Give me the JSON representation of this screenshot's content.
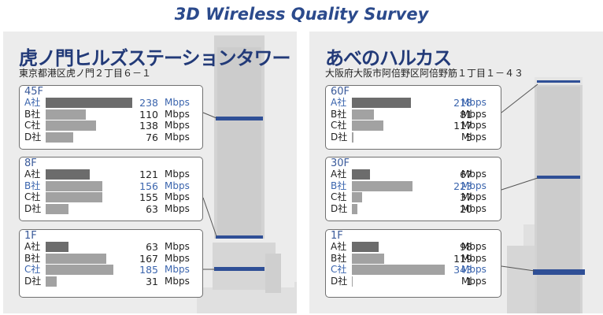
{
  "title": "3D Wireless Quality Survey",
  "colors": {
    "title": "#2b4a8c",
    "highlight": "#3a64ad",
    "floor_band": "#2f4f96",
    "bars": [
      "#6c6c6c",
      "#a2a2a2",
      "#a2a2a2",
      "#a2a2a2"
    ]
  },
  "chart_data": [
    {
      "type": "bar",
      "panel_name": "虎ノ門ヒルズステーションタワー",
      "address": "東京都港区虎ノ門２丁目６－１",
      "unit": "Mbps",
      "carriers": [
        "A社",
        "B社",
        "C社",
        "D社"
      ],
      "floors": [
        {
          "floor": "45F",
          "values": [
            238,
            110,
            138,
            76
          ],
          "best": "A社"
        },
        {
          "floor": "8F",
          "values": [
            121,
            156,
            155,
            63
          ],
          "best": "B社"
        },
        {
          "floor": "1F",
          "values": [
            63,
            167,
            185,
            31
          ],
          "best": "C社"
        }
      ]
    },
    {
      "type": "bar",
      "panel_name": "あべのハルカス",
      "address": "大阪府大阪市阿倍野区阿倍野筋１丁目１－４３",
      "unit": "Mbps",
      "carriers": [
        "A社",
        "B社",
        "C社",
        "D社"
      ],
      "floors": [
        {
          "floor": "60F",
          "values": [
            218,
            81,
            117,
            5
          ],
          "best": "A社"
        },
        {
          "floor": "30F",
          "values": [
            67,
            223,
            37,
            20
          ],
          "best": "B社"
        },
        {
          "floor": "1F",
          "values": [
            98,
            119,
            343,
            1
          ],
          "best": "C社"
        }
      ]
    }
  ]
}
